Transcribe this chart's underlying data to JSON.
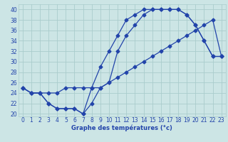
{
  "bg_color": "#cce5e5",
  "grid_color": "#aacccc",
  "line_color": "#2244aa",
  "title": "Graphe des températures (°c)",
  "xlim": [
    -0.5,
    23.5
  ],
  "ylim": [
    19.5,
    41
  ],
  "yticks": [
    20,
    22,
    24,
    26,
    28,
    30,
    32,
    34,
    36,
    38,
    40
  ],
  "xticks": [
    0,
    1,
    2,
    3,
    4,
    5,
    6,
    7,
    8,
    9,
    10,
    11,
    12,
    13,
    14,
    15,
    16,
    17,
    18,
    19,
    20,
    21,
    22,
    23
  ],
  "series1_x": [
    0,
    1,
    2,
    3,
    4,
    5,
    6,
    7,
    8,
    9,
    10,
    11,
    12,
    13,
    14,
    15,
    16,
    17,
    18,
    19,
    20,
    21,
    22,
    23
  ],
  "series1_y": [
    25,
    24,
    24,
    22,
    21,
    21,
    21,
    20,
    22,
    25,
    26,
    32,
    35,
    37,
    39,
    40,
    40,
    40,
    40,
    39,
    37,
    34,
    31,
    31
  ],
  "series2_x": [
    0,
    1,
    2,
    3,
    4,
    5,
    6,
    7,
    8,
    9,
    10,
    11,
    12,
    13,
    14,
    15,
    16,
    17,
    18,
    19,
    20,
    21,
    22,
    23
  ],
  "series2_y": [
    25,
    24,
    24,
    22,
    21,
    21,
    21,
    20,
    25,
    29,
    32,
    35,
    38,
    39,
    40,
    40,
    40,
    40,
    40,
    39,
    37,
    34,
    31,
    31
  ],
  "series3_x": [
    0,
    1,
    2,
    3,
    4,
    5,
    6,
    7,
    8,
    9,
    10,
    11,
    12,
    13,
    14,
    15,
    16,
    17,
    18,
    19,
    20,
    21,
    22,
    23
  ],
  "series3_y": [
    25,
    24,
    24,
    24,
    24,
    25,
    25,
    25,
    25,
    25,
    26,
    27,
    28,
    29,
    30,
    31,
    32,
    33,
    34,
    35,
    36,
    37,
    38,
    31
  ],
  "tick_fontsize": 5.5,
  "xlabel_fontsize": 6.0
}
